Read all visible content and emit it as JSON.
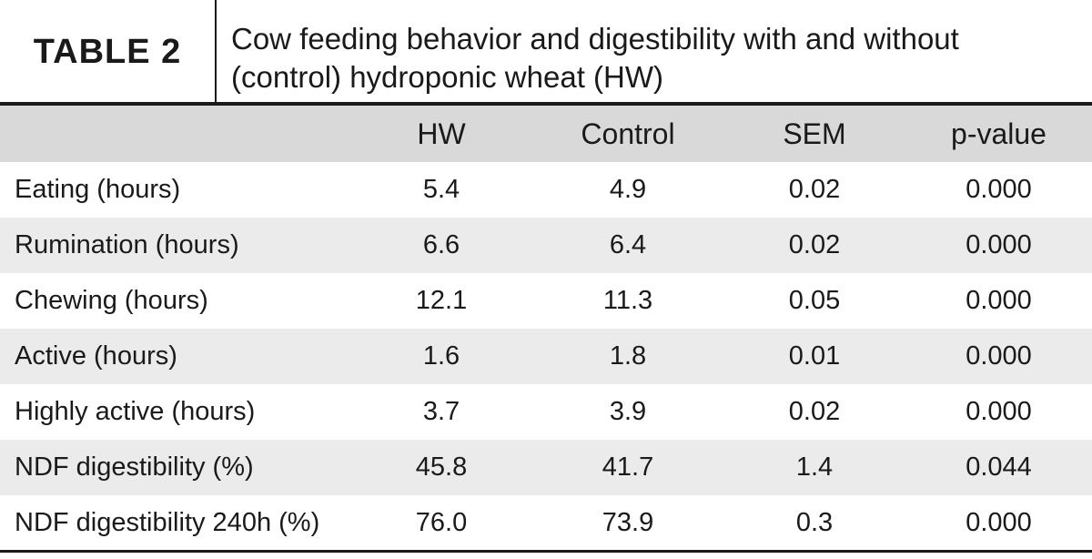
{
  "title": {
    "label": "TABLE 2",
    "caption_line1": "Cow feeding behavior and digestibility with and without",
    "caption_line2": "(control) hydroponic wheat (HW)"
  },
  "table": {
    "headers": [
      "",
      "HW",
      "Control",
      "SEM",
      "p-value"
    ],
    "rows": [
      [
        "Eating (hours)",
        "5.4",
        "4.9",
        "0.02",
        "0.000"
      ],
      [
        "Rumination (hours)",
        "6.6",
        "6.4",
        "0.02",
        "0.000"
      ],
      [
        "Chewing (hours)",
        "12.1",
        "11.3",
        "0.05",
        "0.000"
      ],
      [
        "Active (hours)",
        "1.6",
        "1.8",
        "0.01",
        "0.000"
      ],
      [
        "Highly active (hours)",
        "3.7",
        "3.9",
        "0.02",
        "0.000"
      ],
      [
        "NDF digestibility (%)",
        "45.8",
        "41.7",
        "1.4",
        "0.044"
      ],
      [
        "NDF digestibility 240h (%)",
        "76.0",
        "73.9",
        "0.3",
        "0.000"
      ]
    ]
  },
  "colors": {
    "header_band": "#d9d9da",
    "row_shade": "#ebebec",
    "text": "#1a1a1a"
  }
}
